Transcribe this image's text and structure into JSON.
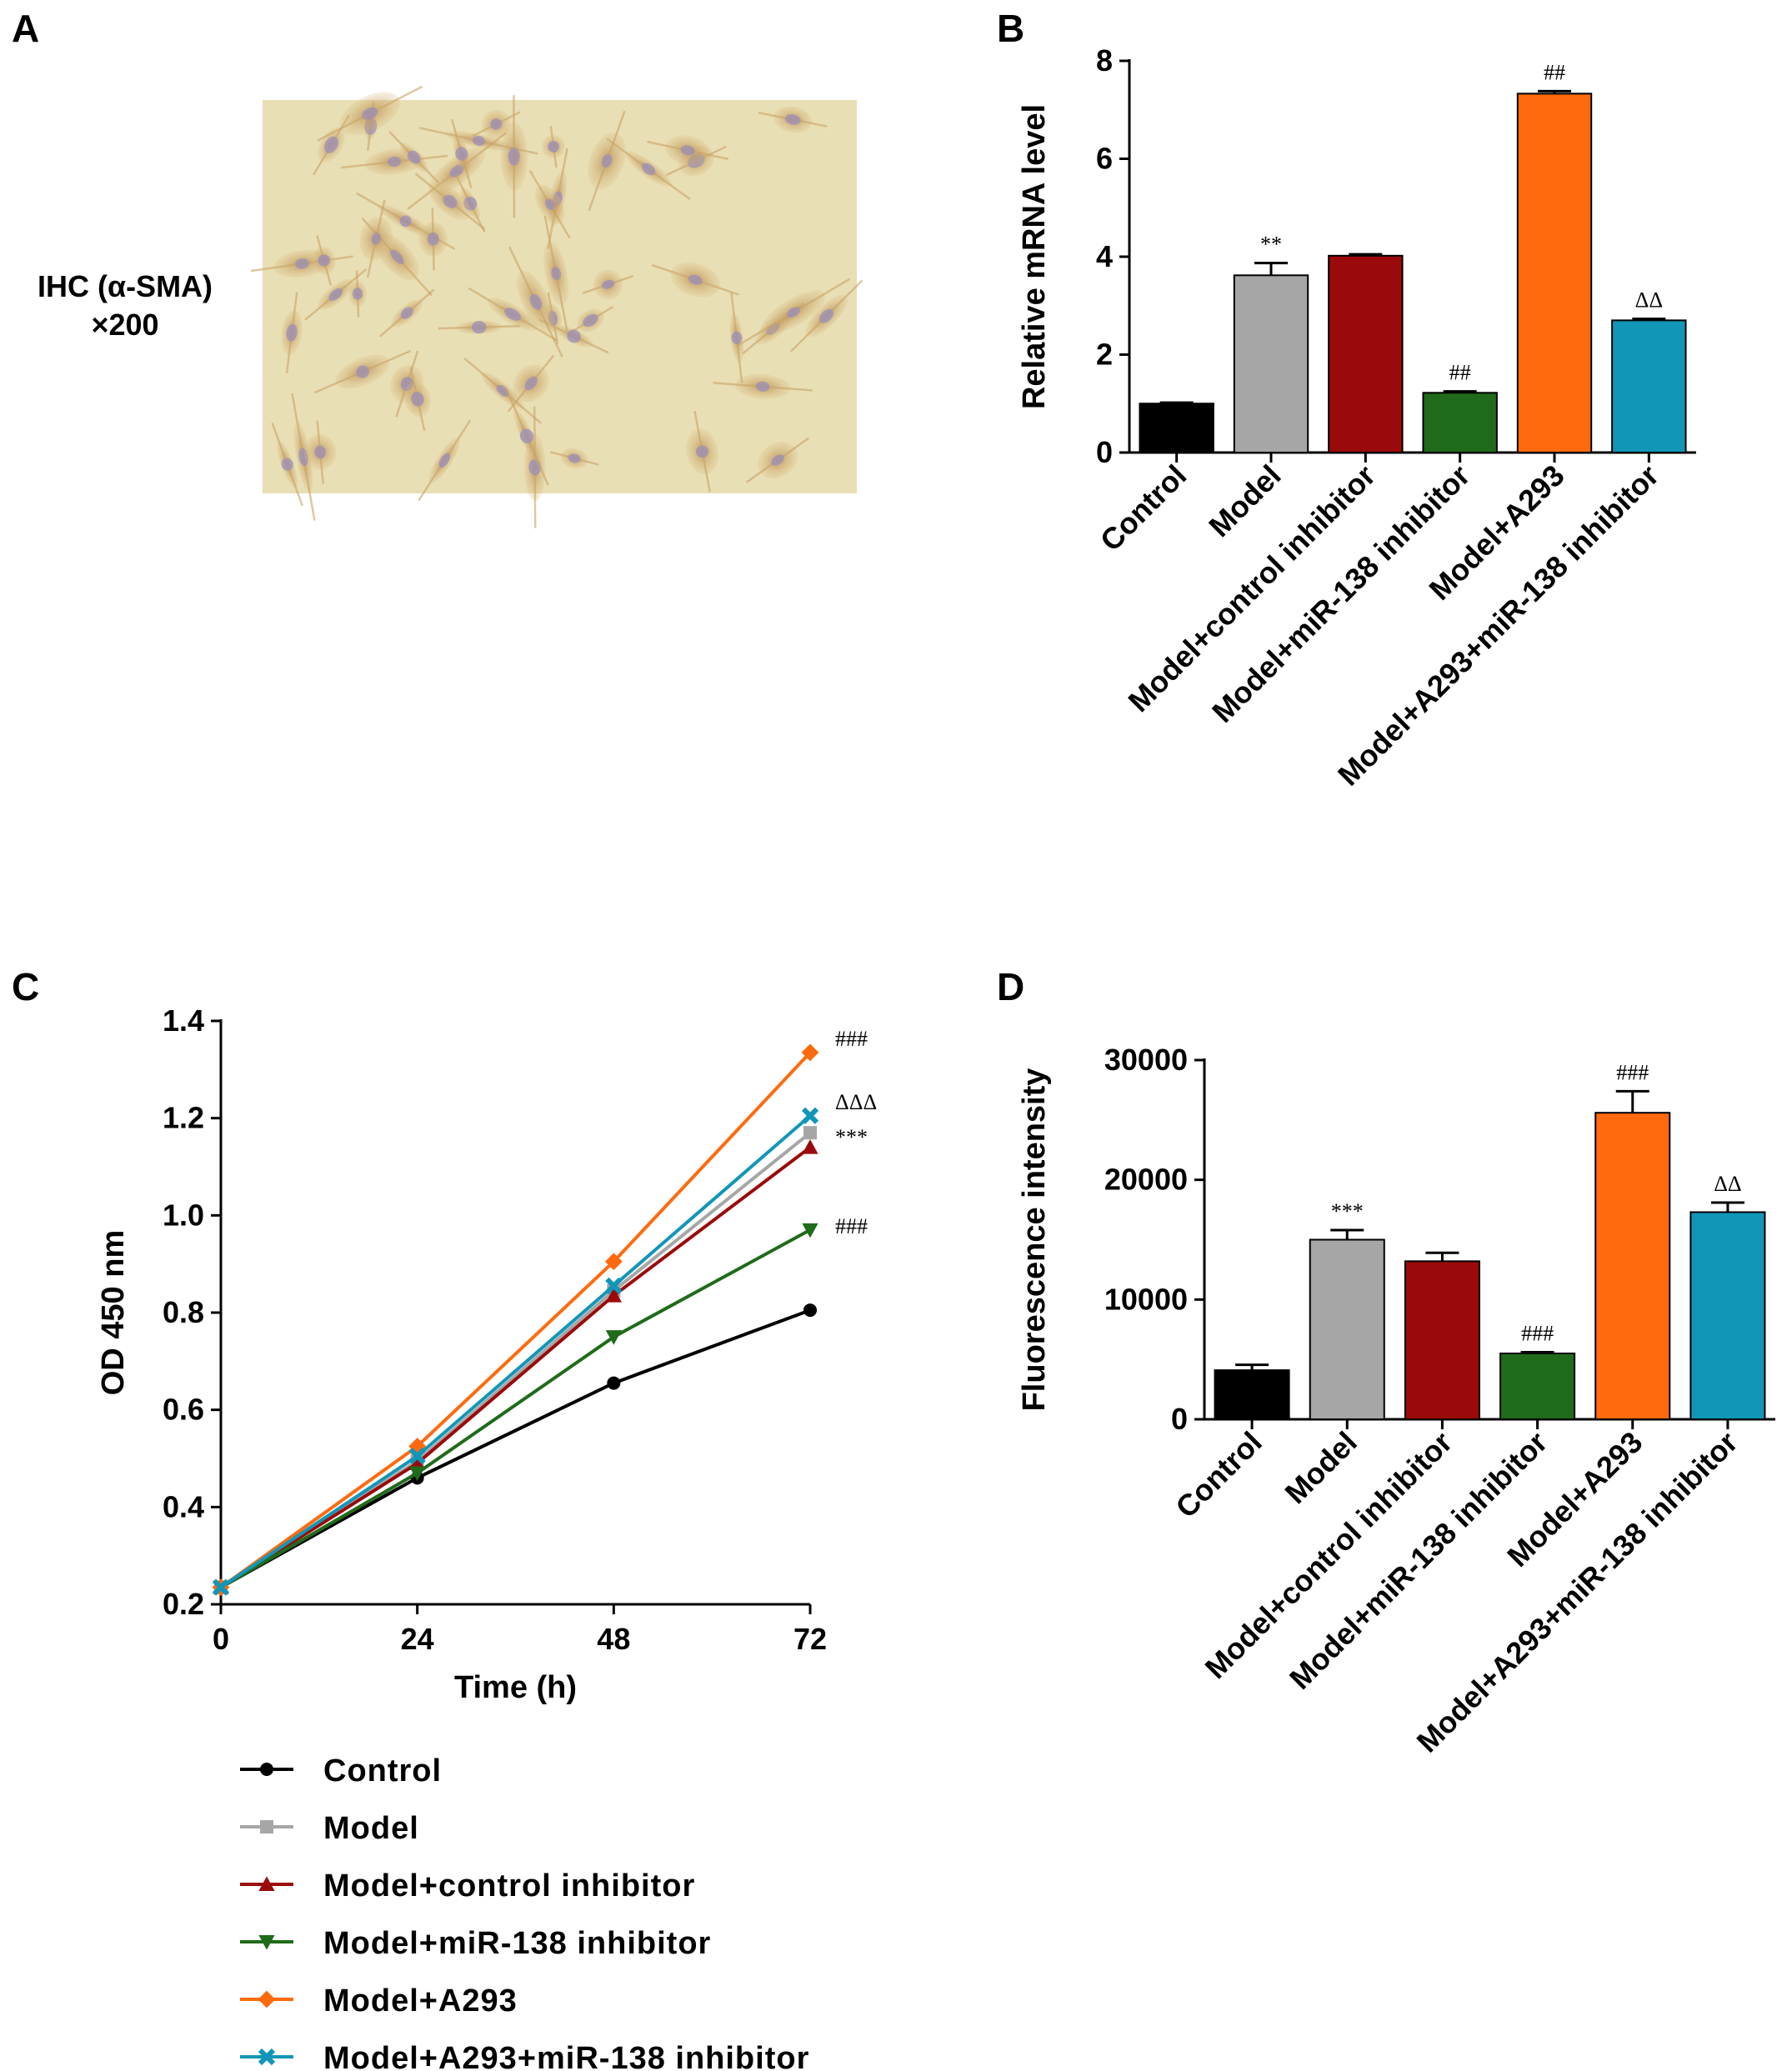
{
  "panels": {
    "a": {
      "letter": "A",
      "label_line1": "IHC (α-SMA)",
      "label_line2": "×200"
    },
    "b": {
      "letter": "B"
    },
    "c": {
      "letter": "C"
    },
    "d": {
      "letter": "D"
    }
  },
  "colors": {
    "Control": "#000000",
    "Model": "#a6a6a6",
    "Model+control inhibitor": "#9b0a0a",
    "Model+miR-138 inhibitor": "#1f6b1a",
    "Model+A293": "#ff6a0e",
    "Model+A293+miR-138 inhibitor": "#1296b8",
    "micrograph_background": "#e9dfb5",
    "micrograph_cell": "#c9a467",
    "micrograph_nucleus": "#9b8fb8"
  },
  "chart_data": [
    {
      "panel": "B",
      "type": "bar",
      "ylabel": "Relative mRNA level",
      "xlabel": "",
      "ylim": [
        0,
        8
      ],
      "yticks": [
        "0",
        "2",
        "4",
        "6",
        "8"
      ],
      "categories": [
        "Control",
        "Model",
        "Model+control inhibitor",
        "Model+miR-138 inhibitor",
        "Model+A293",
        "Model+A293+miR-138 inhibitor"
      ],
      "values": [
        1.0,
        3.62,
        4.02,
        1.22,
        7.33,
        2.7
      ],
      "errors": [
        0.02,
        0.25,
        0.03,
        0.03,
        0.05,
        0.03
      ],
      "annotations": [
        "",
        "**",
        "",
        "##",
        "##",
        "ΔΔ"
      ],
      "grid": false
    },
    {
      "panel": "C",
      "type": "line",
      "xlabel": "Time (h)",
      "ylabel": "OD 450 nm",
      "x": [
        0,
        24,
        48,
        72
      ],
      "xticks": [
        "0",
        "24",
        "48",
        "72"
      ],
      "yticks": [
        "0.2",
        "0.4",
        "0.6",
        "0.8",
        "1.0",
        "1.2",
        "1.4"
      ],
      "xlim": [
        0,
        72
      ],
      "ylim": [
        0.2,
        1.4
      ],
      "series": [
        {
          "name": "Control",
          "values": [
            0.235,
            0.46,
            0.655,
            0.805
          ],
          "marker": "circle"
        },
        {
          "name": "Model",
          "values": [
            0.235,
            0.495,
            0.845,
            1.17
          ],
          "marker": "square"
        },
        {
          "name": "Model+control inhibitor",
          "values": [
            0.235,
            0.49,
            0.835,
            1.14
          ],
          "marker": "triangle-up"
        },
        {
          "name": "Model+miR-138 inhibitor",
          "values": [
            0.235,
            0.47,
            0.75,
            0.97
          ],
          "marker": "triangle-down"
        },
        {
          "name": "Model+A293",
          "values": [
            0.235,
            0.525,
            0.905,
            1.335
          ],
          "marker": "diamond"
        },
        {
          "name": "Model+A293+miR-138 inhibitor",
          "values": [
            0.235,
            0.505,
            0.855,
            1.205
          ],
          "marker": "x"
        }
      ],
      "annotations": [
        {
          "series": "Model+A293",
          "text": "###"
        },
        {
          "series": "Model+A293+miR-138 inhibitor",
          "text": "ΔΔΔ"
        },
        {
          "series": "Model",
          "text": "***"
        },
        {
          "series": "Model+miR-138 inhibitor",
          "text": "###"
        }
      ],
      "legend_placement": "bottom",
      "grid": false
    },
    {
      "panel": "D",
      "type": "bar",
      "ylabel": "Fluorescence intensity",
      "xlabel": "",
      "ylim": [
        0,
        30000
      ],
      "yticks": [
        "0",
        "10000",
        "20000",
        "30000"
      ],
      "categories": [
        "Control",
        "Model",
        "Model+control inhibitor",
        "Model+miR-138 inhibitor",
        "Model+A293",
        "Model+A293+miR-138 inhibitor"
      ],
      "values": [
        4100,
        15000,
        13200,
        5500,
        25600,
        17300
      ],
      "errors": [
        450,
        800,
        700,
        100,
        1800,
        800
      ],
      "annotations": [
        "",
        "***",
        "",
        "###",
        "###",
        "ΔΔ"
      ],
      "grid": false
    }
  ]
}
